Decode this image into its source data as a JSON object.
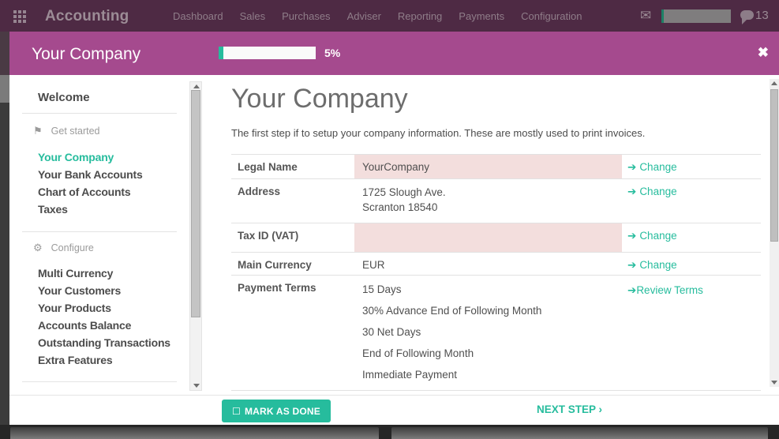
{
  "nav": {
    "brand": "Accounting",
    "items": [
      "Dashboard",
      "Sales",
      "Purchases",
      "Adviser",
      "Reporting",
      "Payments",
      "Configuration"
    ],
    "message_count": "13"
  },
  "modal": {
    "title": "Your Company",
    "progress_percent": 5,
    "progress_label": "5%"
  },
  "sidebar": {
    "welcome": "Welcome",
    "sections": [
      {
        "title": "Get started",
        "icon": "flag-icon",
        "items": [
          "Your Company",
          "Your Bank Accounts",
          "Chart of Accounts",
          "Taxes"
        ],
        "active_item": "Your Company"
      },
      {
        "title": "Configure",
        "icon": "gear-icon",
        "items": [
          "Multi Currency",
          "Your Customers",
          "Your Products",
          "Accounts Balance",
          "Outstanding Transactions",
          "Extra Features"
        ]
      }
    ]
  },
  "main": {
    "title": "Your Company",
    "description": "The first step if to setup your company information. These are mostly used to print invoices.",
    "table": {
      "rows": [
        {
          "label": "Legal Name",
          "values": [
            "YourCompany"
          ],
          "action": "Change",
          "highlight": true
        },
        {
          "label": "Address",
          "values": [
            "1725 Slough Ave.",
            "Scranton 18540"
          ],
          "action": "Change",
          "highlight": false
        },
        {
          "label": "Tax ID (VAT)",
          "values": [],
          "action": "Change",
          "highlight": true
        },
        {
          "label": "Main Currency",
          "values": [
            "EUR"
          ],
          "action": "Change",
          "highlight": false
        },
        {
          "label": "Payment Terms",
          "values": [
            "15 Days",
            "30% Advance End of Following Month",
            "30 Net Days",
            "End of Following Month",
            "Immediate Payment"
          ],
          "action": "Review Terms",
          "highlight": false
        }
      ]
    }
  },
  "footer": {
    "mark_as_done": "MARK AS DONE",
    "next_step": "NEXT STEP"
  },
  "icons": {
    "flag": "⚑",
    "gear": "⚙",
    "arrow_right": "➔",
    "chevron_right": "›",
    "checkbox_unchecked": "☐",
    "close": "✖",
    "mail": "✉"
  },
  "colors": {
    "accent_teal": "#26bc9d",
    "header_purple": "#a54a8e",
    "nav_purple_dimmed": "#4e2a44",
    "highlight_pink": "#f3dedd"
  }
}
